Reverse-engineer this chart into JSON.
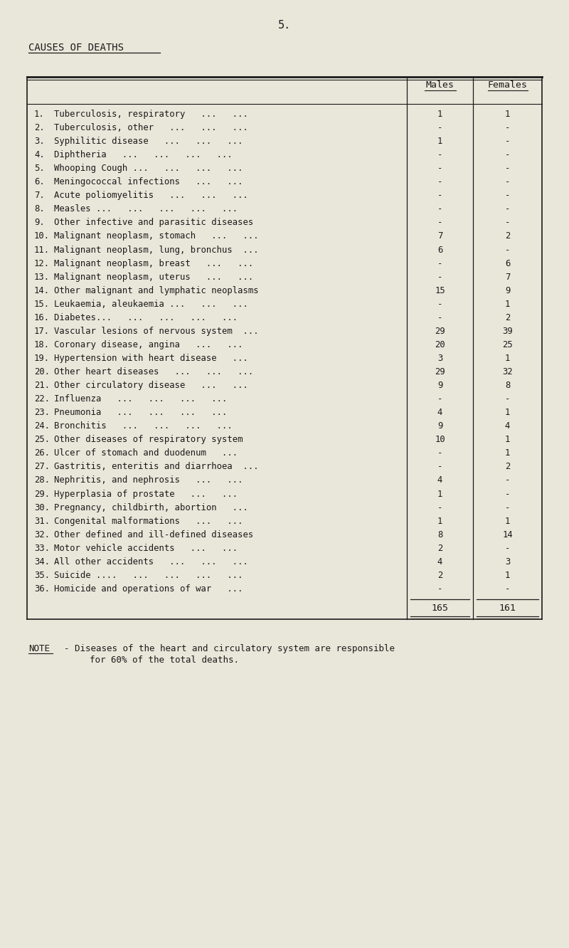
{
  "page_number": "5.",
  "title": "CAUSES OF DEATHS",
  "bg_color": "#e9e7da",
  "text_color": "#1a1a1a",
  "col_header_males": "Males",
  "col_header_females": "Females",
  "rows": [
    {
      "num": "1.",
      "desc": "Tuberculosis, respiratory   ...   ...",
      "males": "1",
      "females": "1"
    },
    {
      "num": "2.",
      "desc": "Tuberculosis, other   ...   ...   ...",
      "males": "-",
      "females": "-"
    },
    {
      "num": "3.",
      "desc": "Syphilitic disease   ...   ...   ...",
      "males": "1",
      "females": "-"
    },
    {
      "num": "4.",
      "desc": "Diphtheria   ...   ...   ...   ...",
      "males": "-",
      "females": "-"
    },
    {
      "num": "5.",
      "desc": "Whooping Cough ...   ...   ...   ...",
      "males": "-",
      "females": "-"
    },
    {
      "num": "6.",
      "desc": "Meningococcal infections   ...   ...",
      "males": "-",
      "females": "-"
    },
    {
      "num": "7.",
      "desc": "Acute poliomyelitis   ...   ...   ...",
      "males": "-",
      "females": "-"
    },
    {
      "num": "8.",
      "desc": "Measles ...   ...   ...   ...   ...",
      "males": "-",
      "females": "-"
    },
    {
      "num": "9.",
      "desc": "Other infective and parasitic diseases",
      "males": "-",
      "females": "-"
    },
    {
      "num": "10.",
      "desc": "Malignant neoplasm, stomach   ...   ...",
      "males": "7",
      "females": "2"
    },
    {
      "num": "11.",
      "desc": "Malignant neoplasm, lung, bronchus  ...",
      "males": "6",
      "females": "-"
    },
    {
      "num": "12.",
      "desc": "Malignant neoplasm, breast   ...   ...",
      "males": "-",
      "females": "6"
    },
    {
      "num": "13.",
      "desc": "Malignant neoplasm, uterus   ...   ...",
      "males": "-",
      "females": "7"
    },
    {
      "num": "14.",
      "desc": "Other malignant and lymphatic neoplasms",
      "males": "15",
      "females": "9"
    },
    {
      "num": "15.",
      "desc": "Leukaemia, aleukaemia ...   ...   ...",
      "males": "-",
      "females": "1"
    },
    {
      "num": "16.",
      "desc": "Diabetes...   ...   ...   ...   ...",
      "males": "-",
      "females": "2"
    },
    {
      "num": "17.",
      "desc": "Vascular lesions of nervous system  ...",
      "males": "29",
      "females": "39"
    },
    {
      "num": "18.",
      "desc": "Coronary disease, angina   ...   ...",
      "males": "20",
      "females": "25"
    },
    {
      "num": "19.",
      "desc": "Hypertension with heart disease   ...",
      "males": "3",
      "females": "1"
    },
    {
      "num": "20.",
      "desc": "Other heart diseases   ...   ...   ...",
      "males": "29",
      "females": "32"
    },
    {
      "num": "21.",
      "desc": "Other circulatory disease   ...   ...",
      "males": "9",
      "females": "8"
    },
    {
      "num": "22.",
      "desc": "Influenza   ...   ...   ...   ...",
      "males": "-",
      "females": "-"
    },
    {
      "num": "23.",
      "desc": "Pneumonia   ...   ...   ...   ...",
      "males": "4",
      "females": "1"
    },
    {
      "num": "24.",
      "desc": "Bronchitis   ...   ...   ...   ...",
      "males": "9",
      "females": "4"
    },
    {
      "num": "25.",
      "desc": "Other diseases of respiratory system",
      "males": "10",
      "females": "1"
    },
    {
      "num": "26.",
      "desc": "Ulcer of stomach and duodenum   ...",
      "males": "-",
      "females": "1"
    },
    {
      "num": "27.",
      "desc": "Gastritis, enteritis and diarrhoea  ...",
      "males": "-",
      "females": "2"
    },
    {
      "num": "28.",
      "desc": "Nephritis, and nephrosis   ...   ...",
      "males": "4",
      "females": "-"
    },
    {
      "num": "29.",
      "desc": "Hyperplasia of prostate   ...   ...",
      "males": "1",
      "females": "-"
    },
    {
      "num": "30.",
      "desc": "Pregnancy, childbirth, abortion   ...",
      "males": "-",
      "females": "-"
    },
    {
      "num": "31.",
      "desc": "Congenital malformations   ...   ...",
      "males": "1",
      "females": "1"
    },
    {
      "num": "32.",
      "desc": "Other defined and ill-defined diseases",
      "males": "8",
      "females": "14"
    },
    {
      "num": "33.",
      "desc": "Motor vehicle accidents   ...   ...",
      "males": "2",
      "females": "-"
    },
    {
      "num": "34.",
      "desc": "All other accidents   ...   ...   ...",
      "males": "4",
      "females": "3"
    },
    {
      "num": "35.",
      "desc": "Suicide ....   ...   ...   ...   ...",
      "males": "2",
      "females": "1"
    },
    {
      "num": "36.",
      "desc": "Homicide and operations of war   ...",
      "males": "-",
      "females": "-"
    }
  ],
  "total_males": "165",
  "total_females": "161",
  "note_label": "NOTE",
  "note_text1": "- Diseases of the heart and circulatory system are responsible",
  "note_text2": "for 60% of the total deaths."
}
